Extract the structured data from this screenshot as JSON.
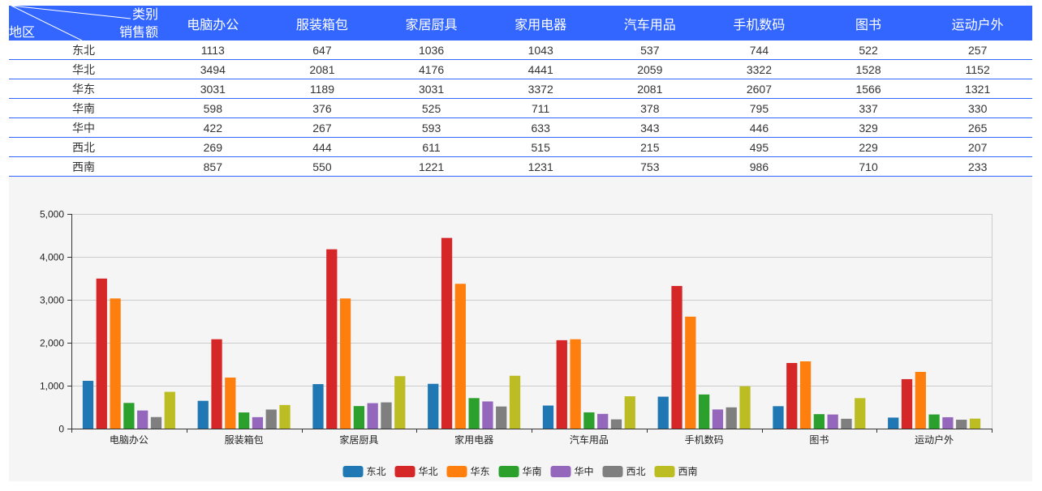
{
  "table": {
    "corner": {
      "category": "类别",
      "value": "销售额",
      "region": "地区"
    },
    "columns": [
      "电脑办公",
      "服装箱包",
      "家居厨具",
      "家用电器",
      "汽车用品",
      "手机数码",
      "图书",
      "运动户外"
    ],
    "rows": [
      {
        "region": "东北",
        "values": [
          1113,
          647,
          1036,
          1043,
          537,
          744,
          522,
          257
        ]
      },
      {
        "region": "华北",
        "values": [
          3494,
          2081,
          4176,
          4441,
          2059,
          3322,
          1528,
          1152
        ]
      },
      {
        "region": "华东",
        "values": [
          3031,
          1189,
          3031,
          3372,
          2081,
          2607,
          1566,
          1321
        ]
      },
      {
        "region": "华南",
        "values": [
          598,
          376,
          525,
          711,
          378,
          795,
          337,
          330
        ]
      },
      {
        "region": "华中",
        "values": [
          422,
          267,
          593,
          633,
          343,
          446,
          329,
          265
        ]
      },
      {
        "region": "西北",
        "values": [
          269,
          444,
          611,
          515,
          215,
          495,
          229,
          207
        ]
      },
      {
        "region": "西南",
        "values": [
          857,
          550,
          1221,
          1231,
          753,
          986,
          710,
          233
        ]
      }
    ]
  },
  "colors": {
    "header_bg": "#3366ff",
    "header_text": "#ffffff",
    "row_border": "#3366ff",
    "chart_bg": "#f5f5f5",
    "grid": "#cccccc",
    "axis": "#333333"
  },
  "chart_data": {
    "type": "bar",
    "categories": [
      "电脑办公",
      "服装箱包",
      "家居厨具",
      "家用电器",
      "汽车用品",
      "手机数码",
      "图书",
      "运动户外"
    ],
    "series": [
      {
        "name": "东北",
        "color": "#1f77b4",
        "values": [
          1113,
          647,
          1036,
          1043,
          537,
          744,
          522,
          257
        ]
      },
      {
        "name": "华北",
        "color": "#d62728",
        "values": [
          3494,
          2081,
          4176,
          4441,
          2059,
          3322,
          1528,
          1152
        ]
      },
      {
        "name": "华东",
        "color": "#ff7f0e",
        "values": [
          3031,
          1189,
          3031,
          3372,
          2081,
          2607,
          1566,
          1321
        ]
      },
      {
        "name": "华南",
        "color": "#2ca02c",
        "values": [
          598,
          376,
          525,
          711,
          378,
          795,
          337,
          330
        ]
      },
      {
        "name": "华中",
        "color": "#9467bd",
        "values": [
          422,
          267,
          593,
          633,
          343,
          446,
          329,
          265
        ]
      },
      {
        "name": "西北",
        "color": "#7f7f7f",
        "values": [
          269,
          444,
          611,
          515,
          215,
          495,
          229,
          207
        ]
      },
      {
        "name": "西南",
        "color": "#bcbd22",
        "values": [
          857,
          550,
          1221,
          1231,
          753,
          986,
          710,
          233
        ]
      }
    ],
    "ylim": [
      0,
      5000
    ],
    "yticks": [
      0,
      1000,
      2000,
      3000,
      4000,
      5000
    ],
    "ytick_labels": [
      "0",
      "1,000",
      "2,000",
      "3,000",
      "4,000",
      "5,000"
    ],
    "grid": true,
    "legend": "bottom"
  }
}
